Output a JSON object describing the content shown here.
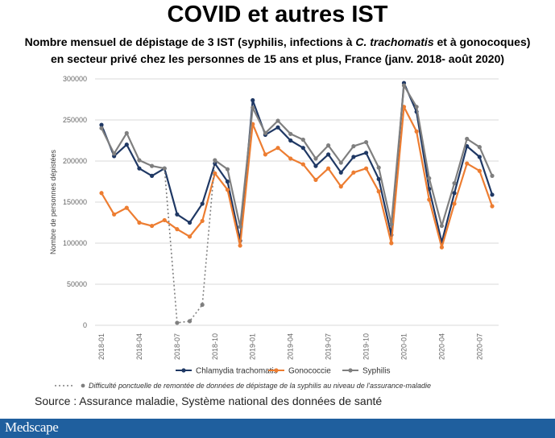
{
  "title": "COVID et autres IST",
  "subtitle": {
    "line1_pre": "Nombre mensuel de dépistage de 3 IST (syphilis, infections à ",
    "line1_italic": "C. trachomatis",
    "line1_post": " et à gonocoques)",
    "line2": "en secteur privé chez les personnes de 15 ans et plus, France (janv. 2018- août 2020)"
  },
  "source": "Source : Assurance maladie, Système national des données de santé",
  "footer": {
    "logo": "Medscape",
    "color": "#1f5f9e"
  },
  "chart_data": {
    "type": "line",
    "x": [
      "2018-01",
      "2018-02",
      "2018-03",
      "2018-04",
      "2018-05",
      "2018-06",
      "2018-07",
      "2018-08",
      "2018-09",
      "2018-10",
      "2018-11",
      "2018-12",
      "2019-01",
      "2019-02",
      "2019-03",
      "2019-04",
      "2019-05",
      "2019-06",
      "2019-07",
      "2019-08",
      "2019-09",
      "2019-10",
      "2019-11",
      "2019-12",
      "2020-01",
      "2020-02",
      "2020-03",
      "2020-04",
      "2020-05",
      "2020-06",
      "2020-07",
      "2020-08"
    ],
    "x_tick_labels": [
      "2018-01",
      "2018-04",
      "2018-07",
      "2018-10",
      "2019-01",
      "2019-04",
      "2019-07",
      "2019-10",
      "2020-01",
      "2020-04",
      "2020-07"
    ],
    "ylabel": "Nombre de personnes dépistées",
    "ylim": [
      0,
      300000
    ],
    "y_ticks": [
      0,
      50000,
      100000,
      150000,
      200000,
      250000,
      300000
    ],
    "grid": true,
    "legend_position": "bottom",
    "series": [
      {
        "name": "Chlamydia trachomatis",
        "color": "#1f3864",
        "values": [
          244000,
          206000,
          220000,
          191000,
          182000,
          191000,
          135000,
          125000,
          148000,
          197000,
          175000,
          103000,
          274000,
          232000,
          241000,
          225000,
          216000,
          194000,
          208000,
          186000,
          205000,
          210000,
          178000,
          110000,
          295000,
          260000,
          166000,
          101000,
          161000,
          218000,
          205000,
          159000
        ]
      },
      {
        "name": "Gonococcie",
        "color": "#ed7d31",
        "values": [
          161000,
          135000,
          143000,
          125000,
          121000,
          128000,
          117000,
          108000,
          127000,
          185000,
          165000,
          97000,
          245000,
          208000,
          216000,
          203000,
          196000,
          177000,
          191000,
          169000,
          186000,
          191000,
          163000,
          100000,
          266000,
          236000,
          153000,
          95000,
          148000,
          197000,
          188000,
          145000
        ]
      },
      {
        "name": "Syphilis",
        "color": "#7f7f7f",
        "values": [
          240000,
          209000,
          234000,
          201000,
          194000,
          191000,
          3000,
          5000,
          25000,
          201000,
          190000,
          120000,
          265000,
          234000,
          249000,
          233000,
          226000,
          203000,
          219000,
          198000,
          218000,
          223000,
          192000,
          123000,
          292000,
          266000,
          179000,
          121000,
          173000,
          227000,
          217000,
          182000
        ]
      }
    ],
    "dotted_segment": {
      "series": "Syphilis",
      "from_index": 5,
      "to_index": 9
    },
    "note": "Difficulté ponctuelle de remontée de données de dépistage de la syphilis au niveau de l'assurance-maladie"
  }
}
